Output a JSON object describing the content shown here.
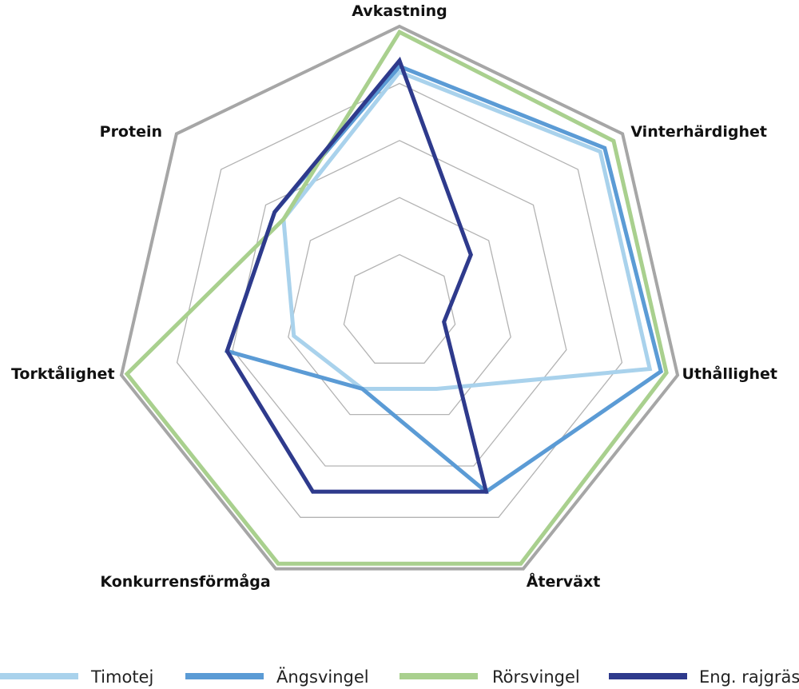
{
  "chart_data": {
    "type": "radar",
    "axes": [
      "Avkastning",
      "Vinterhärdighet",
      "Uthållighet",
      "Återväxt",
      "Konkurrensförmåga",
      "Torktålighet",
      "Protein"
    ],
    "scale": {
      "min": 0,
      "max": 5,
      "rings": 5
    },
    "grid": true,
    "legend_position": "bottom",
    "series": [
      {
        "name": "Timotej",
        "color": "#a9d2ec",
        "values": [
          4.2,
          4.5,
          4.5,
          1.5,
          1.5,
          1.9,
          2.6
        ]
      },
      {
        "name": "Ängsvingel",
        "color": "#5b9bd5",
        "values": [
          4.3,
          4.6,
          4.7,
          3.5,
          1.5,
          3.1,
          2.8
        ]
      },
      {
        "name": "Rörsvingel",
        "color": "#a9d08e",
        "values": [
          4.9,
          4.8,
          4.8,
          4.9,
          4.9,
          4.9,
          2.6
        ]
      },
      {
        "name": "Eng. rajgräs",
        "color": "#2e3a8c",
        "values": [
          4.4,
          1.6,
          0.8,
          3.5,
          3.5,
          3.1,
          2.8
        ]
      }
    ]
  }
}
